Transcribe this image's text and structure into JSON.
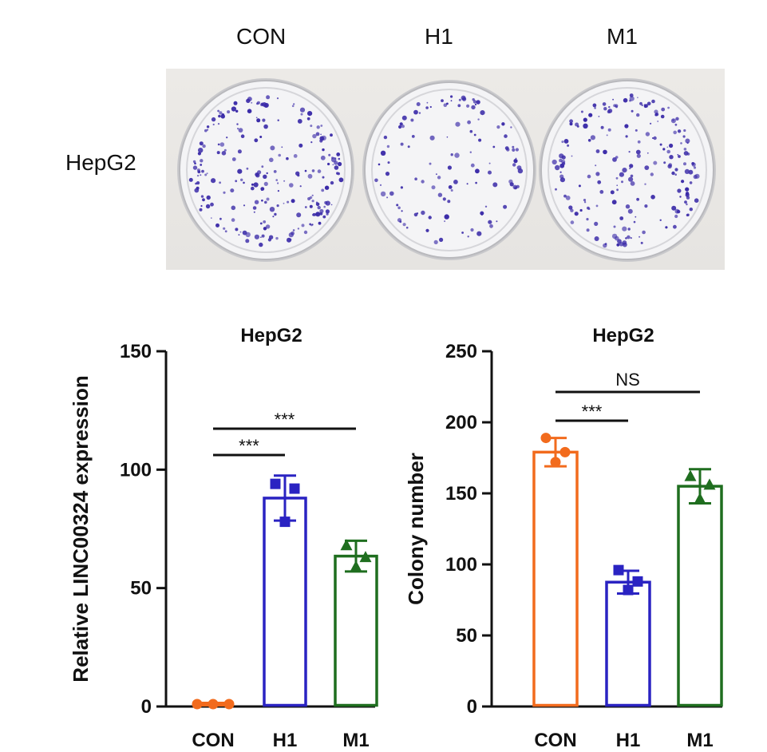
{
  "figure": {
    "plate_columns": [
      "CON",
      "H1",
      "M1"
    ],
    "plate_row": "HepG2"
  },
  "colors": {
    "CON": "#F26B1D",
    "H1": "#2A23C2",
    "M1": "#1F6E1F",
    "colony": "#3A2AA8"
  },
  "chart_data": [
    {
      "type": "bar",
      "title": "HepG2",
      "xlabel": "",
      "ylabel": "Relative LINC00324 expression",
      "categories": [
        "CON",
        "H1",
        "M1"
      ],
      "values": [
        1,
        88,
        63.5
      ],
      "errors": [
        0.5,
        9.5,
        6.5
      ],
      "points": [
        [
          1,
          1,
          1
        ],
        [
          94,
          92,
          78
        ],
        [
          68,
          63,
          59
        ]
      ],
      "markers": [
        "circle",
        "square",
        "triangle"
      ],
      "ylim": [
        0,
        150
      ],
      "yticks": [
        0,
        50,
        100,
        150
      ],
      "significance": [
        {
          "from": "CON",
          "to": "H1",
          "label": "***"
        },
        {
          "from": "CON",
          "to": "M1",
          "label": "***"
        }
      ]
    },
    {
      "type": "bar",
      "title": "HepG2",
      "xlabel": "",
      "ylabel": "Colony number",
      "categories": [
        "CON",
        "H1",
        "M1"
      ],
      "values": [
        179,
        87.5,
        155
      ],
      "errors": [
        10,
        8,
        12
      ],
      "points": [
        [
          189,
          179,
          172
        ],
        [
          96,
          88,
          82
        ],
        [
          162,
          156,
          146
        ]
      ],
      "markers": [
        "circle",
        "square",
        "triangle"
      ],
      "ylim": [
        0,
        250
      ],
      "yticks": [
        0,
        50,
        100,
        150,
        200,
        250
      ],
      "significance": [
        {
          "from": "CON",
          "to": "H1",
          "label": "***"
        },
        {
          "from": "CON",
          "to": "M1",
          "label": "NS"
        }
      ]
    }
  ]
}
